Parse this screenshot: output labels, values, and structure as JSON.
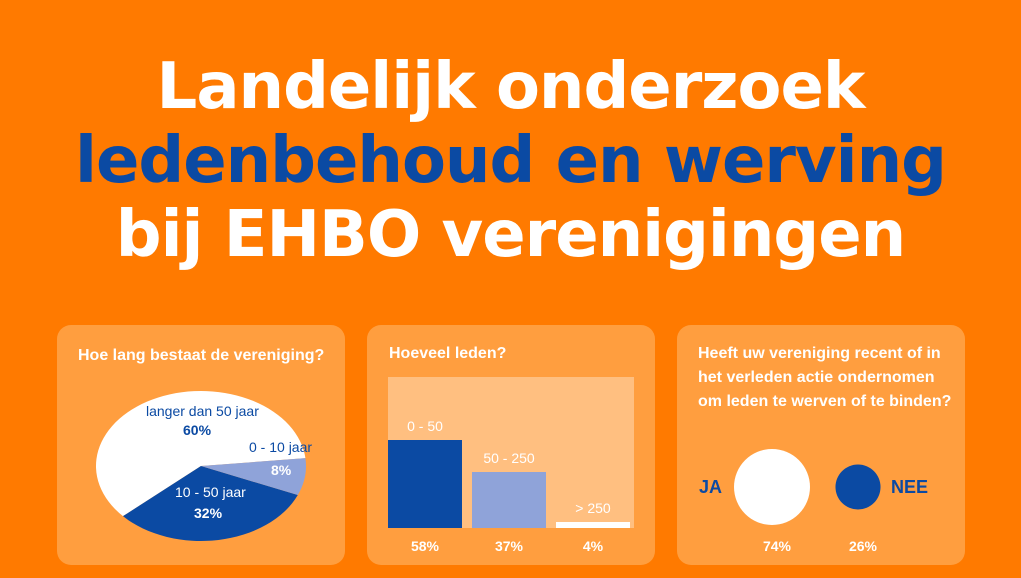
{
  "title": {
    "line1": "Landelijk onderzoek",
    "line2": "ledenbehoud en werving",
    "line3": "bij EHBO verenigingen"
  },
  "panel_age": {
    "question": "Hoe lang bestaat de  vereniging?",
    "slices": [
      {
        "label": "langer dan 50 jaar",
        "value": 60,
        "display": "60%",
        "color": "#ffffff"
      },
      {
        "label": "10 - 50 jaar",
        "value": 32,
        "display": "32%",
        "color": "#0b4aa3"
      },
      {
        "label": "0 - 10 jaar",
        "value": 8,
        "display": "8%",
        "color": "#8fa3d9"
      }
    ]
  },
  "panel_members": {
    "question": "Hoeveel leden?",
    "bars": [
      {
        "label": "0 - 50",
        "value": 58,
        "display": "58%",
        "color": "#0b4aa3"
      },
      {
        "label": "50 - 250",
        "value": 37,
        "display": "37%",
        "color": "#8fa3d9"
      },
      {
        "label": "> 250",
        "value": 4,
        "display": "4%",
        "color": "#ffffff"
      }
    ]
  },
  "panel_action": {
    "question_line1": "Heeft uw vereniging recent of in",
    "question_line2": "het verleden actie ondernomen",
    "question_line3": "om leden te werven of te binden?",
    "yes": {
      "label": "JA",
      "value": 74,
      "display": "74%",
      "color": "#ffffff"
    },
    "no": {
      "label": "NEE",
      "value": 26,
      "display": "26%",
      "color": "#0b4aa3"
    }
  }
}
